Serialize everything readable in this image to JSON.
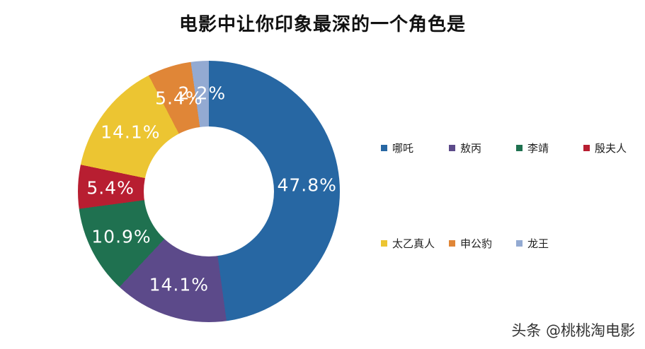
{
  "title": "电影中让你印象最深的一个角色是",
  "watermark": "头条 @桃桃淘电影",
  "chart_data": {
    "type": "pie",
    "title": "电影中让你印象最深的一个角色是",
    "donut": true,
    "legend_position": "right",
    "categories": [
      "哪吒",
      "敖丙",
      "李靖",
      "殷夫人",
      "太乙真人",
      "申公豹",
      "龙王"
    ],
    "values": [
      47.8,
      14.1,
      10.9,
      5.4,
      14.1,
      5.4,
      2.2
    ],
    "labels": [
      "47.8%",
      "14.1%",
      "10.9%",
      "5.4%",
      "14.1%",
      "5.4%",
      "2.2%"
    ],
    "colors": [
      "#2767a3",
      "#5c4a8a",
      "#1f7150",
      "#b81e31",
      "#ecc532",
      "#e08637",
      "#93aad2"
    ]
  }
}
